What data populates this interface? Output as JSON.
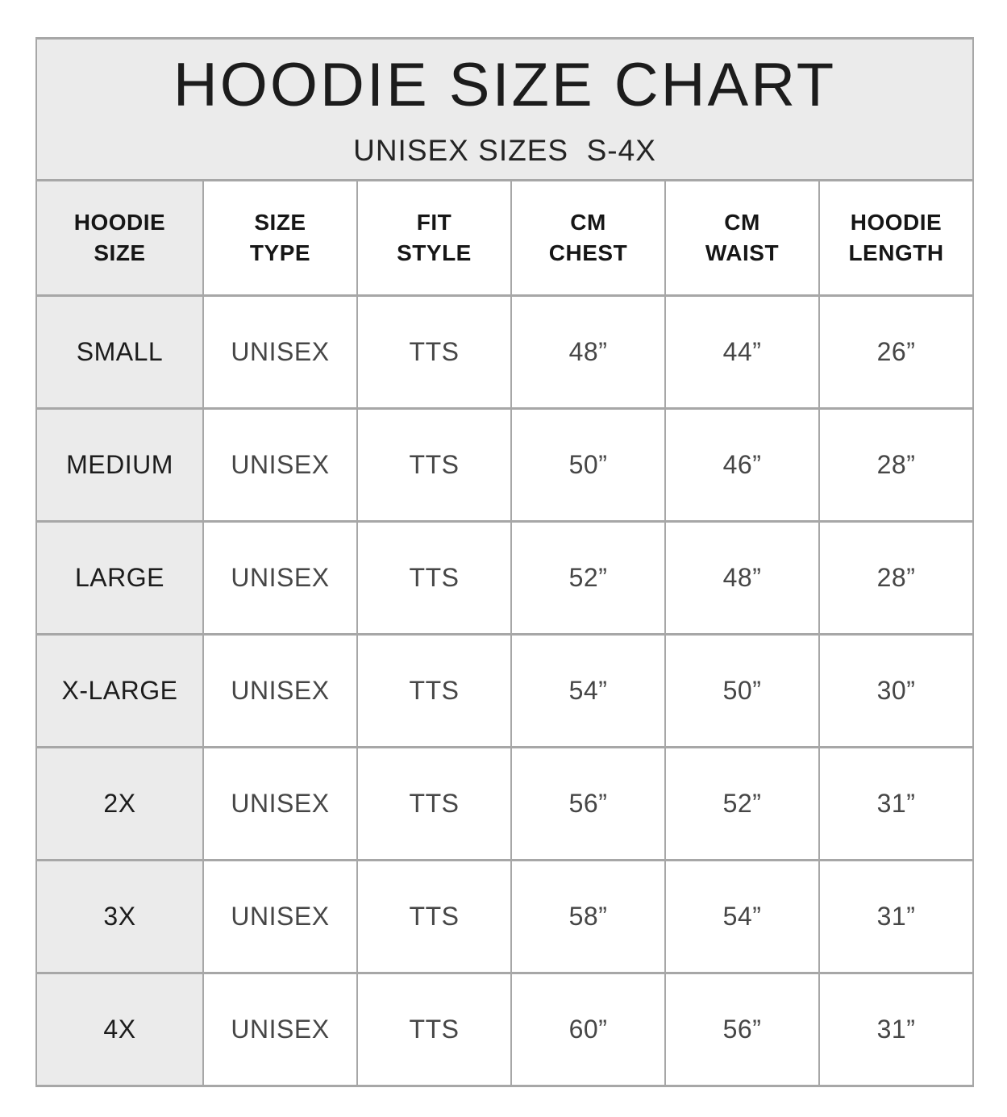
{
  "title": "HOODIE SIZE CHART",
  "subtitle": "UNISEX SIZES  S-4X",
  "colors": {
    "band_background": "#ebebeb",
    "grid_border": "#a7a7a7",
    "title_text": "#1c1c1c",
    "value_text": "#464646"
  },
  "table": {
    "headers": [
      "HOODIE\nSIZE",
      "SIZE\nTYPE",
      "FIT\nSTYLE",
      "CM\nCHEST",
      "CM\nWAIST",
      "HOODIE\nLENGTH"
    ],
    "rows": [
      {
        "size": "SMALL",
        "type": "UNISEX",
        "fit": "TTS",
        "chest": "48”",
        "waist": "44”",
        "length": "26”"
      },
      {
        "size": "MEDIUM",
        "type": "UNISEX",
        "fit": "TTS",
        "chest": "50”",
        "waist": "46”",
        "length": "28”"
      },
      {
        "size": "LARGE",
        "type": "UNISEX",
        "fit": "TTS",
        "chest": "52”",
        "waist": "48”",
        "length": "28”"
      },
      {
        "size": "X-LARGE",
        "type": "UNISEX",
        "fit": "TTS",
        "chest": "54”",
        "waist": "50”",
        "length": "30”"
      },
      {
        "size": "2X",
        "type": "UNISEX",
        "fit": "TTS",
        "chest": "56”",
        "waist": "52”",
        "length": "31”"
      },
      {
        "size": "3X",
        "type": "UNISEX",
        "fit": "TTS",
        "chest": "58”",
        "waist": "54”",
        "length": "31”"
      },
      {
        "size": "4X",
        "type": "UNISEX",
        "fit": "TTS",
        "chest": "60”",
        "waist": "56”",
        "length": "31”"
      }
    ]
  },
  "chart_data": {
    "type": "table",
    "title": "HOODIE SIZE CHART",
    "subtitle": "UNISEX SIZES S-4X",
    "columns": [
      "HOODIE SIZE",
      "SIZE TYPE",
      "FIT STYLE",
      "CM CHEST",
      "CM WAIST",
      "HOODIE LENGTH"
    ],
    "rows": [
      [
        "SMALL",
        "UNISEX",
        "TTS",
        "48”",
        "44”",
        "26”"
      ],
      [
        "MEDIUM",
        "UNISEX",
        "TTS",
        "50”",
        "46”",
        "28”"
      ],
      [
        "LARGE",
        "UNISEX",
        "TTS",
        "52”",
        "48”",
        "28”"
      ],
      [
        "X-LARGE",
        "UNISEX",
        "TTS",
        "54”",
        "50”",
        "30”"
      ],
      [
        "2X",
        "UNISEX",
        "TTS",
        "56”",
        "52”",
        "31”"
      ],
      [
        "3X",
        "UNISEX",
        "TTS",
        "58”",
        "54”",
        "31”"
      ],
      [
        "4X",
        "UNISEX",
        "TTS",
        "60”",
        "56”",
        "31”"
      ]
    ]
  }
}
